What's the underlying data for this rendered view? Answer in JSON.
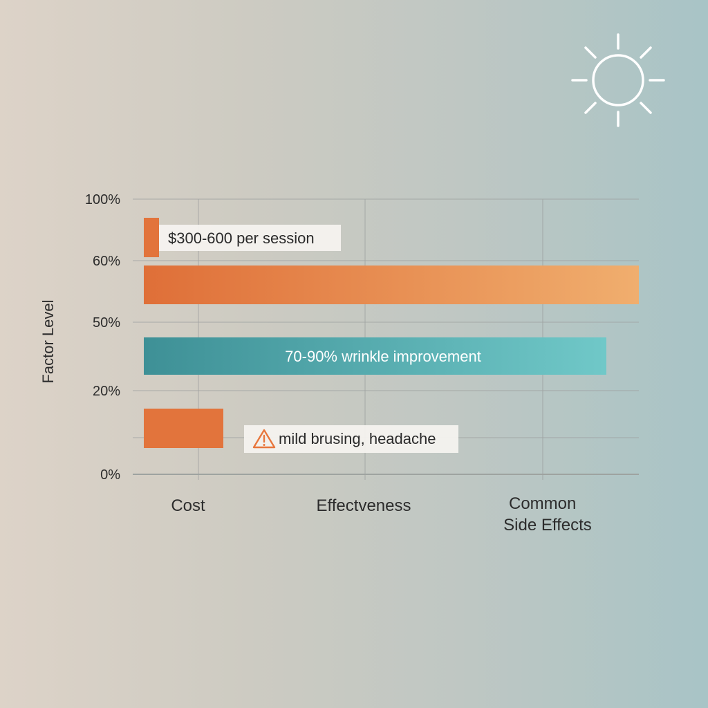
{
  "chart_data": {
    "type": "bar",
    "orientation": "horizontal",
    "title": "",
    "xlabel": "",
    "ylabel": "Factor Level",
    "y_tick_labels": [
      "100%",
      "60%",
      "50%",
      "20%",
      "0%"
    ],
    "categories": [
      "Cost",
      "Effectveness",
      "Common\nSide Effects"
    ],
    "grid": true,
    "bars": [
      {
        "annotation": "$300-600 per session",
        "color": "#e2743c"
      },
      {
        "annotation": "",
        "color_start": "#df6f38",
        "color_end": "#f0ae6e"
      },
      {
        "annotation": "70-90% wrinkle improvement",
        "color_start": "#3e9096",
        "color_end": "#70c8c8"
      },
      {
        "annotation": "mild brusing, headache",
        "color": "#e2743c",
        "annotation_icon": "warning-triangle-icon",
        "icon_color": "#e8763c"
      }
    ]
  },
  "decor": {
    "icon": "sun-icon",
    "icon_color": "#ffffff"
  }
}
